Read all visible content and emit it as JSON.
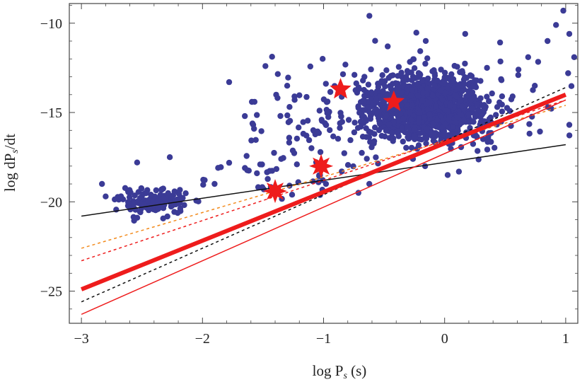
{
  "chart_data": {
    "type": "scatter",
    "title": "",
    "xlabel": "log P",
    "xlabel_sub": "s",
    "xlabel_unit": " (s)",
    "ylabel": "log dP",
    "ylabel_sub": "s",
    "ylabel_unit": "/dt",
    "xlim": [
      -3.1,
      1.1
    ],
    "ylim": [
      -26.8,
      -8.9
    ],
    "xticks": [
      -3,
      -2,
      -1,
      0,
      1
    ],
    "xtick_labels": [
      "−3",
      "−2",
      "−1",
      "0",
      "1"
    ],
    "yticks": [
      -25,
      -20,
      -15,
      -10
    ],
    "ytick_labels": [
      "−25",
      "−20",
      "−15",
      "−10"
    ],
    "grid": false,
    "colors": {
      "points": "#3b3b96",
      "stars": "#ee1c1c",
      "thick_line": "#ee1c1c",
      "thin_red_line": "#ee1c1c",
      "black_solid": "#111111",
      "black_dashed": "#111111",
      "orange_dashed": "#f28a1c",
      "red_dashed": "#ee1c1c"
    },
    "lines": [
      {
        "style": "solid",
        "color_key": "black_solid",
        "width": 1.5,
        "x": [
          -3,
          1
        ],
        "y": [
          -20.8,
          -16.8
        ]
      },
      {
        "style": "dashed",
        "color_key": "orange_dashed",
        "width": 1.5,
        "x": [
          -3,
          1
        ],
        "y": [
          -22.6,
          -14.6
        ]
      },
      {
        "style": "dashed",
        "color_key": "red_dashed",
        "width": 1.5,
        "x": [
          -3,
          1
        ],
        "y": [
          -23.3,
          -14.3
        ]
      },
      {
        "style": "dashed",
        "color_key": "black_dashed",
        "width": 1.5,
        "x": [
          -3,
          1
        ],
        "y": [
          -25.6,
          -13.6
        ]
      },
      {
        "style": "solid",
        "color_key": "thin_red_line",
        "width": 1.5,
        "x": [
          -3,
          1
        ],
        "y": [
          -26.3,
          -14.3
        ]
      },
      {
        "style": "solid",
        "color_key": "thick_line",
        "width": 6,
        "x": [
          -3,
          1
        ],
        "y": [
          -24.9,
          -14.0
        ]
      }
    ],
    "stars": [
      {
        "x": -0.86,
        "y": -13.7,
        "points": 5
      },
      {
        "x": -0.42,
        "y": -14.4,
        "points": 5
      },
      {
        "x": -1.02,
        "y": -18.0,
        "points": 8
      },
      {
        "x": -1.4,
        "y": -19.4,
        "points": 8
      }
    ],
    "scatter_groups": [
      {
        "name": "main cloud",
        "n": 1100,
        "cx": -0.15,
        "cy": -14.8,
        "sx": 0.25,
        "sy": 0.85,
        "xmin": -0.75,
        "xmax": 0.9
      },
      {
        "name": "main cloud halo",
        "n": 160,
        "cx": -0.05,
        "cy": -14.6,
        "sx": 0.45,
        "sy": 1.5,
        "xmin": -1.0,
        "xmax": 1.05
      },
      {
        "name": "intermediate",
        "n": 90,
        "cx": -1.1,
        "cy": -15.5,
        "sx": 0.35,
        "sy": 1.6,
        "xmin": -1.6,
        "xmax": -0.6
      },
      {
        "name": "millisecond",
        "n": 140,
        "cx": -2.4,
        "cy": -20.0,
        "sx": 0.14,
        "sy": 0.35,
        "xmin": -2.82,
        "xmax": -1.9
      },
      {
        "name": "transition",
        "n": 30,
        "cx": -1.5,
        "cy": -18.6,
        "sx": 0.35,
        "sy": 0.7,
        "xmin": -2.0,
        "xmax": -1.0
      }
    ],
    "scatter_points": [
      {
        "x": 0.98,
        "y": -9.3
      },
      {
        "x": 0.92,
        "y": -10.1
      },
      {
        "x": 1.03,
        "y": -10.6
      },
      {
        "x": 0.85,
        "y": -11.0
      },
      {
        "x": 1.07,
        "y": -11.9
      },
      {
        "x": 1.02,
        "y": -12.8
      },
      {
        "x": 0.69,
        "y": -11.9
      },
      {
        "x": 0.61,
        "y": -12.6
      },
      {
        "x": 0.17,
        "y": -10.6
      },
      {
        "x": -0.47,
        "y": -11.3
      },
      {
        "x": -0.03,
        "y": -12.6
      },
      {
        "x": 0.35,
        "y": -12.5
      },
      {
        "x": -1.78,
        "y": -13.3
      },
      {
        "x": -1.48,
        "y": -12.4
      },
      {
        "x": -1.65,
        "y": -15.2
      },
      {
        "x": -1.57,
        "y": -14.4
      },
      {
        "x": -1.3,
        "y": -13.5
      },
      {
        "x": -1.24,
        "y": -14.1
      },
      {
        "x": -2.54,
        "y": -17.8
      },
      {
        "x": -2.27,
        "y": -17.5
      },
      {
        "x": -2.83,
        "y": -19.0
      },
      {
        "x": -2.8,
        "y": -19.7
      },
      {
        "x": -1.9,
        "y": -19.0
      },
      {
        "x": -1.55,
        "y": -18.4
      },
      {
        "x": -1.35,
        "y": -17.6
      },
      {
        "x": -1.22,
        "y": -17.9
      },
      {
        "x": -1.26,
        "y": -19.6
      },
      {
        "x": -1.1,
        "y": -17.0
      },
      {
        "x": -0.98,
        "y": -19.0
      },
      {
        "x": -0.85,
        "y": -18.3
      }
    ]
  }
}
